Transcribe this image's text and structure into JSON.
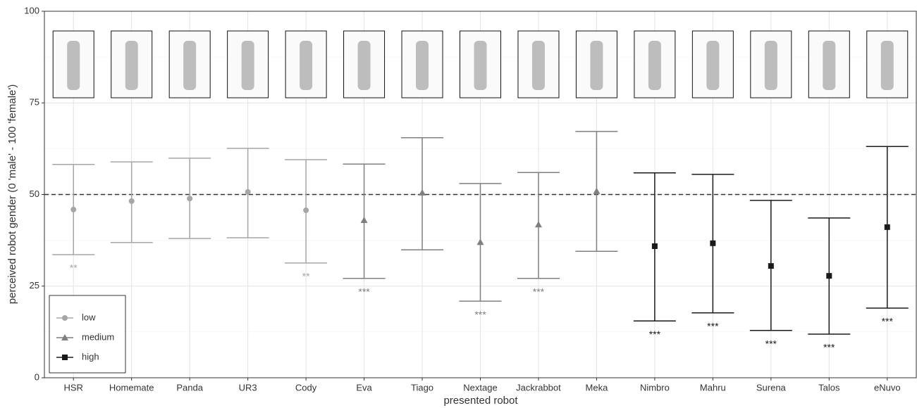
{
  "chart_data": {
    "type": "errorbar",
    "y_label": "perceived robot gender (0 'male' - 100 'female')",
    "x_label": "presented robot",
    "categories": [
      "HSR",
      "Homemate",
      "Panda",
      "UR3",
      "Cody",
      "Eva",
      "Tiago",
      "Nextage",
      "Jackrabbot",
      "Meka",
      "Nimbro",
      "Mahru",
      "Surena",
      "Talos",
      "eNuvo"
    ],
    "ylim": [
      0,
      100
    ],
    "yticks": [
      0,
      25,
      50,
      75,
      100
    ],
    "grid": true,
    "reference_line": 50,
    "legend_position": "bottom-left",
    "series": [
      {
        "name": "low",
        "color": "#a6a6a6",
        "marker": "circle",
        "values": [
          45.9,
          48.2,
          48.9,
          50.7,
          45.7,
          null,
          null,
          null,
          null,
          null,
          null,
          null,
          null,
          null,
          null
        ],
        "upper": [
          58.2,
          58.9,
          59.9,
          62.6,
          59.5,
          null,
          null,
          null,
          null,
          null,
          null,
          null,
          null,
          null,
          null
        ],
        "lower": [
          33.6,
          36.9,
          38.0,
          38.2,
          31.3,
          null,
          null,
          null,
          null,
          null,
          null,
          null,
          null,
          null,
          null
        ],
        "significance": [
          "**",
          null,
          null,
          null,
          "**",
          null,
          null,
          null,
          null,
          null,
          null,
          null,
          null,
          null,
          null
        ]
      },
      {
        "name": "medium",
        "color": "#7f7f7f",
        "marker": "triangle",
        "values": [
          null,
          null,
          null,
          null,
          null,
          43.0,
          50.5,
          37.0,
          41.8,
          50.9,
          null,
          null,
          null,
          null,
          null
        ],
        "upper": [
          null,
          null,
          null,
          null,
          null,
          58.3,
          65.5,
          53.0,
          56.0,
          67.2,
          null,
          null,
          null,
          null,
          null
        ],
        "lower": [
          null,
          null,
          null,
          null,
          null,
          27.1,
          34.9,
          20.9,
          27.1,
          34.5,
          null,
          null,
          null,
          null,
          null
        ],
        "significance": [
          null,
          null,
          null,
          null,
          null,
          "***",
          null,
          "***",
          "***",
          null,
          null,
          null,
          null,
          null,
          null
        ]
      },
      {
        "name": "high",
        "color": "#1a1a1a",
        "marker": "square",
        "values": [
          null,
          null,
          null,
          null,
          null,
          null,
          null,
          null,
          null,
          null,
          35.9,
          36.7,
          30.5,
          27.8,
          41.1
        ],
        "upper": [
          null,
          null,
          null,
          null,
          null,
          null,
          null,
          null,
          null,
          null,
          55.9,
          55.5,
          48.4,
          43.6,
          63.1
        ],
        "lower": [
          null,
          null,
          null,
          null,
          null,
          null,
          null,
          null,
          null,
          null,
          15.5,
          17.7,
          12.9,
          11.9,
          19.0
        ],
        "significance": [
          null,
          null,
          null,
          null,
          null,
          null,
          null,
          null,
          null,
          null,
          "***",
          "***",
          "***",
          "***",
          "***"
        ]
      }
    ]
  }
}
